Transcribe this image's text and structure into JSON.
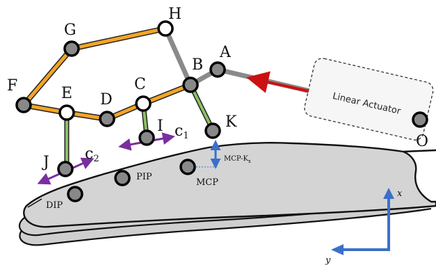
{
  "colors": {
    "link_orange": "#f2a526",
    "link_gray": "#8a8a8a",
    "link_green": "#8cc063",
    "arrow_red": "#cc1111",
    "arrow_purple": "#7a2fa0",
    "arrow_blue": "#3a70c8",
    "hand_fill": "#d4d4d4",
    "joint_fill": "#888888"
  },
  "joints": {
    "A": "A",
    "B": "B",
    "C": "C",
    "D": "D",
    "E": "E",
    "F": "F",
    "G": "G",
    "H": "H",
    "I": "I",
    "J": "J",
    "K": "K",
    "O": "O"
  },
  "constraints": {
    "c1": {
      "base": "c",
      "sub": "1"
    },
    "c2": {
      "base": "c",
      "sub": "2"
    }
  },
  "hand_joints": {
    "pip": "PIP",
    "mcp": "MCP",
    "dip": "DIP"
  },
  "offset": {
    "base": "MCP-K",
    "sub": "x"
  },
  "actuator": {
    "label": "Linear Actuator"
  },
  "axes": {
    "x": "x",
    "y": "y"
  }
}
